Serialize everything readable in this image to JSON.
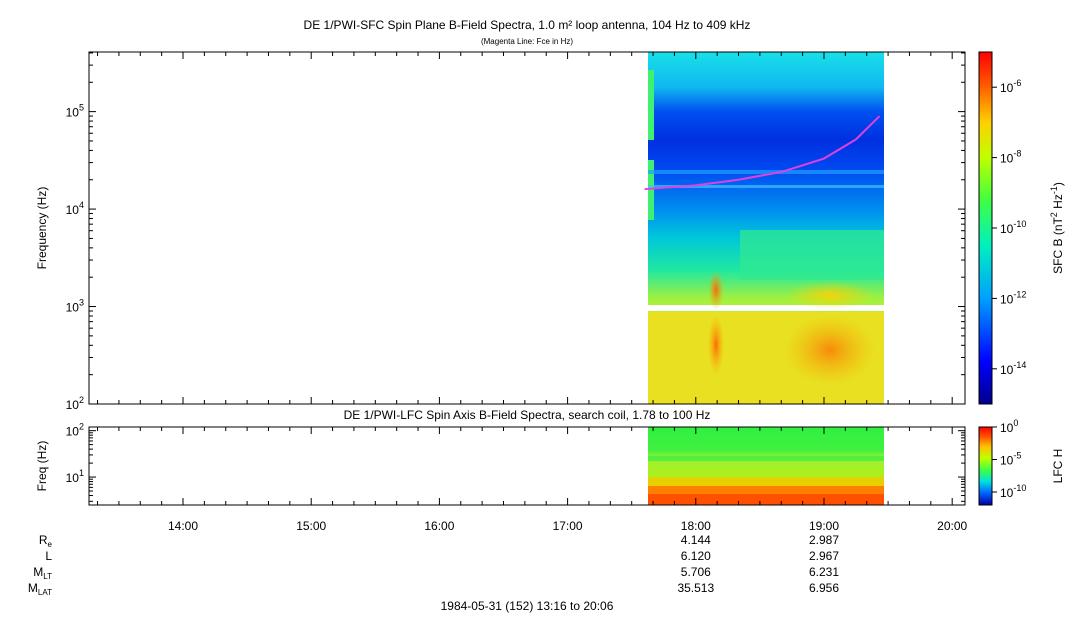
{
  "top_panel": {
    "title": "DE 1/PWI-SFC  Spin Plane B-Field Spectra, 1.0 m² loop antenna, 104 Hz to 409 kHz",
    "subtitle": "(Magenta Line: Fce in Hz)",
    "ylabel": "Frequency (Hz)",
    "colorbar_label": "SFC B (nT² Hz⁻¹)"
  },
  "bottom_panel": {
    "title": "DE 1/PWI-LFC  Spin Axis B-Field Spectra, search coil, 1.78 to 100 Hz",
    "ylabel": "Freq (Hz)",
    "colorbar_label": "LFC H"
  },
  "footer": "1984-05-31 (152) 13:16 to 20:06",
  "colors": {
    "magenta_line": "#e040e0"
  },
  "chart_data": [
    {
      "type": "heatmap",
      "title": "DE 1/PWI-SFC  Spin Plane B-Field Spectra, 1.0 m² loop antenna, 104 Hz to 409 kHz",
      "subtitle": "(Magenta Line: Fce in Hz)",
      "xlabel": "",
      "ylabel": "Frequency (Hz)",
      "x_range": [
        "13:16",
        "20:06"
      ],
      "y_range": [
        100,
        409000
      ],
      "y_scale": "log",
      "data_coverage": [
        "17:36",
        "19:26"
      ],
      "y_ticks": [
        {
          "v": 100,
          "b": "10",
          "e": "2"
        },
        {
          "v": 1000,
          "b": "10",
          "e": "3"
        },
        {
          "v": 10000,
          "b": "10",
          "e": "4"
        },
        {
          "v": 100000,
          "b": "10",
          "e": "5"
        }
      ],
      "x_ticks": [
        "14:00",
        "15:00",
        "16:00",
        "17:00",
        "18:00",
        "19:00",
        "20:00"
      ],
      "colorbar": {
        "label": "SFC B (nT² Hz⁻¹)",
        "scale": "log",
        "range": [
          1e-15,
          1e-05
        ],
        "ticks": [
          {
            "v": 1e-14,
            "b": "10",
            "e": "-14"
          },
          {
            "v": 1e-12,
            "b": "10",
            "e": "-12"
          },
          {
            "v": 1e-10,
            "b": "10",
            "e": "-10"
          },
          {
            "v": 1e-08,
            "b": "10",
            "e": "-8"
          },
          {
            "v": 1e-06,
            "b": "10",
            "e": "-6"
          }
        ]
      },
      "series": [
        {
          "name": "Fce",
          "x": [
            "17:36",
            "18:00",
            "18:20",
            "18:40",
            "19:00",
            "19:15",
            "19:26"
          ],
          "y": [
            16000,
            17500,
            20000,
            24000,
            33000,
            52000,
            90000
          ]
        }
      ]
    },
    {
      "type": "heatmap",
      "title": "DE 1/PWI-LFC  Spin Axis B-Field Spectra, search coil, 1.78 to 100 Hz",
      "xlabel": "",
      "ylabel": "Freq (Hz)",
      "x_range": [
        "13:16",
        "20:06"
      ],
      "y_range": [
        2.5,
        120
      ],
      "y_scale": "log",
      "data_coverage": [
        "17:36",
        "19:26"
      ],
      "y_ticks": [
        {
          "v": 10,
          "b": "10",
          "e": "1"
        },
        {
          "v": 100,
          "b": "10",
          "e": "2"
        }
      ],
      "colorbar": {
        "label": "LFC H",
        "scale": "log",
        "range": [
          1e-12,
          1
        ],
        "ticks": [
          {
            "v": 1e-10,
            "b": "10",
            "e": "-10"
          },
          {
            "v": 1e-05,
            "b": "10",
            "e": "-5"
          },
          {
            "v": 1,
            "b": "10",
            "e": "0"
          }
        ]
      }
    }
  ],
  "ephemeris": {
    "rows": [
      {
        "label": "R",
        "sub": "e",
        "values": [
          "4.144",
          "2.987"
        ]
      },
      {
        "label": "L",
        "sub": "",
        "values": [
          "6.120",
          "2.967"
        ]
      },
      {
        "label": "M",
        "sub": "LT",
        "values": [
          "5.706",
          "6.231"
        ]
      },
      {
        "label": "M",
        "sub": "LAT",
        "values": [
          "35.513",
          "6.956"
        ]
      }
    ],
    "columns": [
      "18:00",
      "19:00"
    ]
  }
}
